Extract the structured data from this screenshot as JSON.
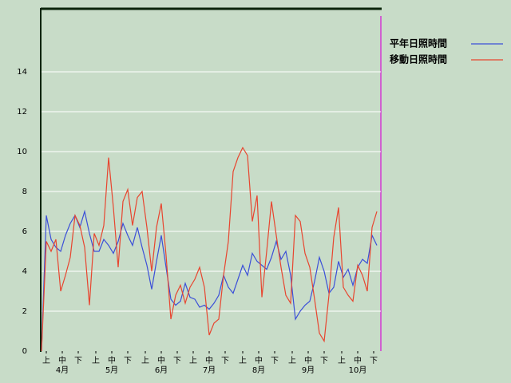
{
  "chart_data": {
    "type": "line",
    "series": [
      {
        "name": "平年日照時間",
        "color": "#3b4fd8",
        "values": [
          0,
          6.8,
          5.6,
          5.2,
          5.0,
          5.8,
          6.4,
          6.8,
          6.2,
          7.0,
          5.9,
          5.0,
          5.0,
          5.6,
          5.3,
          4.9,
          5.5,
          6.4,
          5.8,
          5.3,
          6.2,
          5.2,
          4.3,
          3.1,
          4.5,
          5.8,
          4.2,
          2.6,
          2.3,
          2.5,
          3.4,
          2.7,
          2.6,
          2.2,
          2.3,
          2.1,
          2.4,
          2.8,
          3.8,
          3.2,
          2.9,
          3.6,
          4.3,
          3.8,
          4.9,
          4.5,
          4.3,
          4.1,
          4.7,
          5.5,
          4.6,
          5.0,
          3.8,
          1.6,
          2.0,
          2.3,
          2.5,
          3.5,
          4.7,
          4.0,
          2.9,
          3.2,
          4.5,
          3.7,
          4.1,
          3.3,
          4.2,
          4.6,
          4.4,
          5.8,
          5.3
        ]
      },
      {
        "name": "移動日照時間",
        "color": "#e8452f",
        "values": [
          0,
          5.5,
          5.0,
          5.6,
          3.0,
          3.8,
          4.7,
          6.8,
          6.3,
          5.2,
          2.3,
          5.9,
          5.3,
          6.3,
          9.7,
          7.2,
          4.2,
          7.5,
          8.1,
          6.3,
          7.7,
          8.0,
          6.2,
          4.0,
          6.2,
          7.4,
          4.8,
          1.6,
          2.8,
          3.3,
          2.4,
          3.2,
          3.6,
          4.2,
          3.2,
          0.8,
          1.4,
          1.6,
          3.8,
          5.5,
          9.0,
          9.7,
          10.2,
          9.8,
          6.5,
          7.8,
          2.7,
          5.0,
          7.5,
          5.8,
          4.2,
          2.8,
          2.4,
          6.8,
          6.5,
          4.9,
          4.2,
          2.6,
          0.9,
          0.5,
          2.8,
          5.7,
          7.2,
          3.2,
          2.8,
          2.5,
          4.3,
          3.8,
          3.0,
          6.2,
          7.0
        ]
      }
    ],
    "x": [
      0,
      3,
      6,
      9,
      12,
      15,
      18,
      21,
      24,
      27,
      30,
      33,
      36,
      39,
      42,
      45,
      48,
      51,
      54,
      57,
      60,
      63,
      66,
      69,
      72,
      75,
      78,
      81,
      84,
      87,
      90,
      93,
      96,
      99,
      102,
      105,
      108,
      111,
      114,
      117,
      120,
      123,
      126,
      129,
      132,
      135,
      138,
      141,
      144,
      147,
      150,
      153,
      156,
      159,
      162,
      165,
      168,
      171,
      174,
      177,
      180,
      183,
      186,
      189,
      192,
      195,
      198,
      201,
      204,
      207,
      210
    ],
    "xlim": [
      0,
      212.5
    ],
    "xticks": [
      {
        "value": 3,
        "label": "上"
      },
      {
        "value": 13,
        "label": "中"
      },
      {
        "value": 23,
        "label": "下"
      },
      {
        "value": 34,
        "label": "上"
      },
      {
        "value": 44,
        "label": "中"
      },
      {
        "value": 54,
        "label": "下"
      },
      {
        "value": 65,
        "label": "上"
      },
      {
        "value": 75,
        "label": "中"
      },
      {
        "value": 85,
        "label": "下"
      },
      {
        "value": 95,
        "label": "上"
      },
      {
        "value": 105,
        "label": "中"
      },
      {
        "value": 115,
        "label": "下"
      },
      {
        "value": 126,
        "label": "上"
      },
      {
        "value": 136,
        "label": "中"
      },
      {
        "value": 146,
        "label": "下"
      },
      {
        "value": 157,
        "label": "上"
      },
      {
        "value": 167,
        "label": "中"
      },
      {
        "value": 177,
        "label": "下"
      },
      {
        "value": 188,
        "label": "上"
      },
      {
        "value": 198,
        "label": "中"
      },
      {
        "value": 208,
        "label": "下"
      }
    ],
    "month_labels": [
      {
        "value": 13,
        "label": "4月"
      },
      {
        "value": 44,
        "label": "5月"
      },
      {
        "value": 75,
        "label": "6月"
      },
      {
        "value": 105,
        "label": "7月"
      },
      {
        "value": 136,
        "label": "8月"
      },
      {
        "value": 167,
        "label": "9月"
      },
      {
        "value": 198,
        "label": "10月"
      }
    ],
    "ylim": [
      0,
      17.2
    ],
    "yticks": [
      0,
      2,
      4,
      6,
      8,
      10,
      12,
      14
    ],
    "grid": true,
    "legend": "right"
  }
}
